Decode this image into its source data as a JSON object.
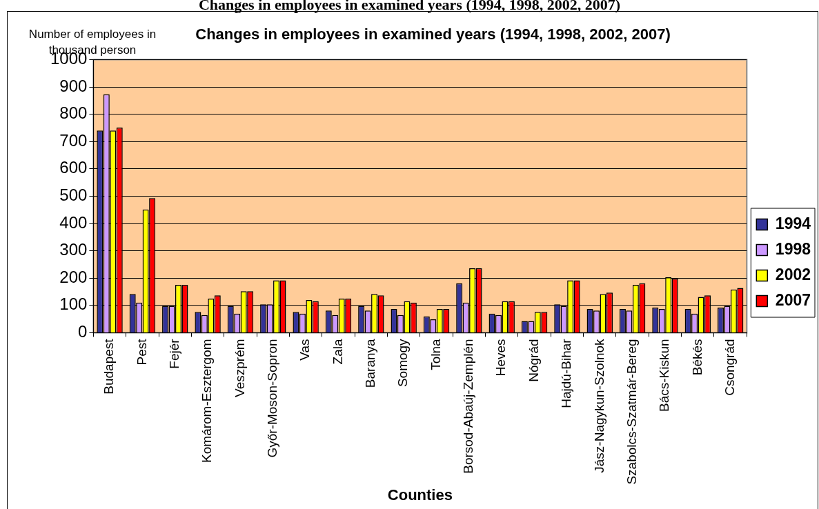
{
  "chart_data": {
    "type": "bar",
    "title": "Changes in employees in examined years (1994, 1998, 2002, 2007)",
    "ylabel": "Number of employees in thousand person",
    "xlabel": "Counties",
    "annotations": [
      "Changes in employees in examined years (1994, 1998, 2002, 2007)"
    ],
    "categories": [
      "Budapest",
      "Pest",
      "Fejér",
      "Komárom-Esztergom",
      "Veszprém",
      "Győr-Moson-Sopron",
      "Vas",
      "Zala",
      "Baranya",
      "Somogy",
      "Tolna",
      "Borsod-Abaúj-Zemplén",
      "Heves",
      "Nógrád",
      "Hajdú-Bihar",
      "Jász-Nagykun-Szolnok",
      "Szabolcs-Szatmár-Bereg",
      "Bács-Kiskun",
      "Békés",
      "Csongrád"
    ],
    "series": [
      {
        "name": "1994",
        "color": "#333399",
        "values": [
          740,
          142,
          98,
          76,
          98,
          104,
          76,
          81,
          98,
          87,
          60,
          181,
          70,
          43,
          104,
          87,
          87,
          92,
          87,
          92
        ]
      },
      {
        "name": "1998",
        "color": "#cc99ff",
        "values": [
          873,
          110,
          98,
          65,
          70,
          104,
          70,
          65,
          81,
          65,
          49,
          110,
          65,
          43,
          98,
          81,
          81,
          87,
          70,
          98
        ]
      },
      {
        "name": "2002",
        "color": "#ffff00",
        "values": [
          740,
          451,
          175,
          125,
          152,
          192,
          120,
          125,
          142,
          115,
          87,
          236,
          115,
          76,
          192,
          142,
          175,
          203,
          131,
          158
        ]
      },
      {
        "name": "2007",
        "color": "#ff0000",
        "values": [
          751,
          493,
          175,
          137,
          152,
          192,
          115,
          125,
          137,
          110,
          87,
          236,
          115,
          76,
          192,
          147,
          181,
          198,
          137,
          164
        ]
      }
    ],
    "ylim": [
      0,
      1000
    ],
    "yticks": [
      0,
      100,
      200,
      300,
      400,
      500,
      600,
      700,
      800,
      900,
      1000
    ],
    "grid": "y",
    "legend": "right"
  }
}
